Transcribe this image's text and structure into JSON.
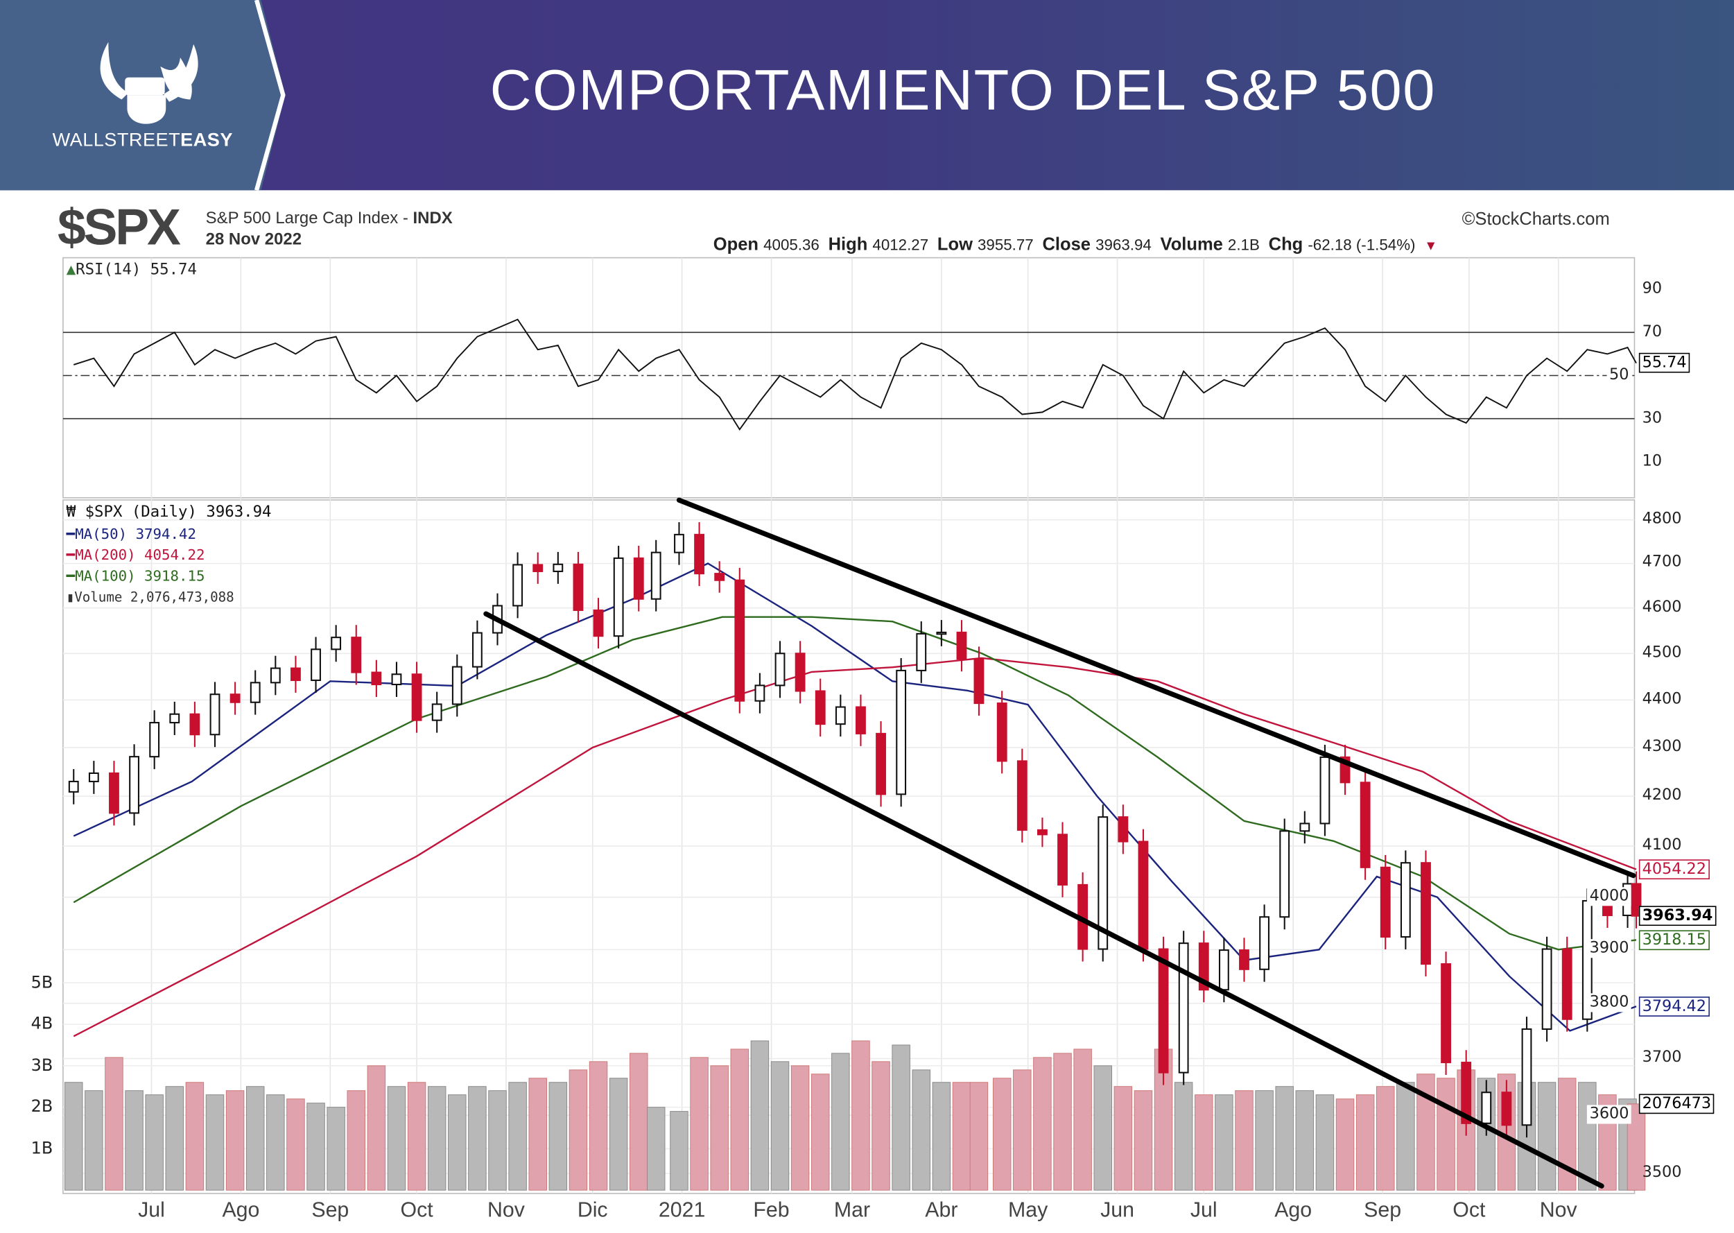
{
  "banner": {
    "title": "COMPORTAMIENTO DEL S&P 500",
    "logo_text_light": "WALLSTREET",
    "logo_text_bold": "EASY",
    "colors": {
      "logo_panel": "#46628a",
      "banner": "#41367f"
    }
  },
  "header": {
    "symbol": "$SPX",
    "description": "S&P 500 Large Cap Index - ",
    "exchange": "INDX",
    "date": "28 Nov 2022",
    "source": "©StockCharts.com",
    "quote": [
      {
        "label": "Open",
        "value": "4005.36"
      },
      {
        "label": "High",
        "value": "4012.27"
      },
      {
        "label": "Low",
        "value": "3955.77"
      },
      {
        "label": "Close",
        "value": "3963.94"
      },
      {
        "label": "Volume",
        "value": "2.1B"
      },
      {
        "label": "Chg",
        "value": "-62.18 (-1.54%)"
      }
    ],
    "change_direction": "down"
  },
  "legend": {
    "rsi": "RSI(14) 55.74",
    "price": "$SPX (Daily) 3963.94",
    "ma50": "MA(50) 3794.42",
    "ma200": "MA(200) 4054.22",
    "ma100": "MA(100) 3918.15",
    "volume": "Volume 2,076,473,088"
  },
  "right_labels": {
    "rsi": "55.74",
    "ma200": "4054.22",
    "close": "3963.94",
    "ma100": "3918.15",
    "ma50": "3794.42",
    "volume": "2076473"
  },
  "chart_data": {
    "type": "candlestick",
    "yscale": "log",
    "grid": true,
    "price_ticks": [
      "4800",
      "4700",
      "4600",
      "4500",
      "4400",
      "4300",
      "4200",
      "4100",
      "4000",
      "3900",
      "3800",
      "3700",
      "3600",
      "3500"
    ],
    "rsi_ticks": [
      "90",
      "70",
      "50",
      "30",
      "10"
    ],
    "volume_ticks": [
      "5B",
      "4B",
      "3B",
      "2B",
      "1B"
    ],
    "months": [
      {
        "label": "Jul",
        "date": "2021-07-01"
      },
      {
        "label": "Ago",
        "date": "2021-08-01"
      },
      {
        "label": "Sep",
        "date": "2021-09-01"
      },
      {
        "label": "Oct",
        "date": "2021-10-01"
      },
      {
        "label": "Nov",
        "date": "2021-11-01"
      },
      {
        "label": "Dic",
        "date": "2021-12-01"
      },
      {
        "label": "2021",
        "date": "2022-01-01"
      },
      {
        "label": "Feb",
        "date": "2022-02-01"
      },
      {
        "label": "Mar",
        "date": "2022-03-01"
      },
      {
        "label": "Abr",
        "date": "2022-04-01"
      },
      {
        "label": "May",
        "date": "2022-05-01"
      },
      {
        "label": "Jun",
        "date": "2022-06-01"
      },
      {
        "label": "Jul",
        "date": "2022-07-01"
      },
      {
        "label": "Ago",
        "date": "2022-08-01"
      },
      {
        "label": "Sep",
        "date": "2022-09-01"
      },
      {
        "label": "Oct",
        "date": "2022-10-01"
      },
      {
        "label": "Nov",
        "date": "2022-11-01"
      }
    ],
    "dates": [
      "2021-06-04",
      "2021-06-11",
      "2021-06-18",
      "2021-06-25",
      "2021-07-02",
      "2021-07-09",
      "2021-07-16",
      "2021-07-23",
      "2021-07-30",
      "2021-08-06",
      "2021-08-13",
      "2021-08-20",
      "2021-08-27",
      "2021-09-03",
      "2021-09-10",
      "2021-09-17",
      "2021-09-24",
      "2021-10-01",
      "2021-10-08",
      "2021-10-15",
      "2021-10-22",
      "2021-10-29",
      "2021-11-05",
      "2021-11-12",
      "2021-11-19",
      "2021-11-26",
      "2021-12-03",
      "2021-12-10",
      "2021-12-17",
      "2021-12-23",
      "2021-12-31",
      "2022-01-07",
      "2022-01-14",
      "2022-01-21",
      "2022-01-28",
      "2022-02-04",
      "2022-02-11",
      "2022-02-18",
      "2022-02-25",
      "2022-03-04",
      "2022-03-11",
      "2022-03-18",
      "2022-03-25",
      "2022-04-01",
      "2022-04-08",
      "2022-04-14",
      "2022-04-22",
      "2022-04-29",
      "2022-05-06",
      "2022-05-13",
      "2022-05-20",
      "2022-05-27",
      "2022-06-03",
      "2022-06-10",
      "2022-06-17",
      "2022-06-24",
      "2022-07-01",
      "2022-07-08",
      "2022-07-15",
      "2022-07-22",
      "2022-07-29",
      "2022-08-05",
      "2022-08-12",
      "2022-08-19",
      "2022-08-26",
      "2022-09-02",
      "2022-09-09",
      "2022-09-16",
      "2022-09-23",
      "2022-09-30",
      "2022-10-07",
      "2022-10-14",
      "2022-10-21",
      "2022-10-28",
      "2022-11-04",
      "2022-11-11",
      "2022-11-18",
      "2022-11-25",
      "2022-11-28"
    ],
    "close": [
      4230,
      4247,
      4166,
      4281,
      4352,
      4370,
      4327,
      4412,
      4395,
      4437,
      4468,
      4442,
      4509,
      4535,
      4459,
      4433,
      4455,
      4357,
      4391,
      4471,
      4545,
      4605,
      4697,
      4682,
      4698,
      4595,
      4538,
      4712,
      4620,
      4725,
      4766,
      4677,
      4662,
      4398,
      4431,
      4500,
      4419,
      4349,
      4385,
      4329,
      4204,
      4463,
      4543,
      4546,
      4488,
      4393,
      4272,
      4132,
      4123,
      4024,
      3901,
      4158,
      4109,
      3901,
      3675,
      3912,
      3825,
      3899,
      3863,
      3962,
      4130,
      4145,
      4280,
      4228,
      4058,
      3924,
      4067,
      3873,
      3693,
      3586,
      3640,
      3583,
      3753,
      3901,
      3771,
      3993,
      3965,
      4026,
      3964
    ],
    "volume_billions": [
      2.6,
      2.4,
      3.2,
      2.4,
      2.3,
      2.5,
      2.6,
      2.3,
      2.4,
      2.5,
      2.3,
      2.2,
      2.1,
      2.0,
      2.4,
      3.0,
      2.5,
      2.6,
      2.5,
      2.3,
      2.5,
      2.4,
      2.6,
      2.7,
      2.6,
      2.9,
      3.1,
      2.7,
      3.3,
      2.0,
      1.9,
      3.2,
      3.0,
      3.4,
      3.6,
      3.1,
      3.0,
      2.8,
      3.3,
      3.6,
      3.1,
      3.5,
      2.9,
      2.6,
      2.6,
      2.6,
      2.7,
      2.9,
      3.2,
      3.3,
      3.4,
      3.0,
      2.5,
      2.4,
      3.4,
      2.6,
      2.3,
      2.3,
      2.4,
      2.4,
      2.5,
      2.4,
      2.3,
      2.2,
      2.3,
      2.5,
      2.6,
      2.8,
      2.7,
      2.9,
      2.7,
      2.8,
      2.6,
      2.6,
      2.7,
      2.6,
      2.3,
      2.2,
      2.08
    ],
    "rsi": [
      55,
      58,
      45,
      60,
      65,
      70,
      55,
      62,
      58,
      62,
      65,
      60,
      66,
      68,
      48,
      42,
      50,
      38,
      45,
      58,
      68,
      72,
      76,
      62,
      64,
      45,
      48,
      62,
      52,
      58,
      62,
      48,
      40,
      25,
      38,
      50,
      45,
      40,
      48,
      40,
      35,
      58,
      65,
      62,
      55,
      45,
      40,
      32,
      33,
      38,
      35,
      55,
      50,
      36,
      30,
      52,
      42,
      48,
      45,
      55,
      65,
      68,
      72,
      62,
      45,
      38,
      50,
      40,
      32,
      28,
      40,
      35,
      50,
      58,
      52,
      62,
      60,
      63,
      55.74
    ],
    "rsi_levels": [
      70,
      50,
      30
    ],
    "series": [
      {
        "name": "MA(50)",
        "color": "#1a237e",
        "points": [
          [
            "2021-06-04",
            4120
          ],
          [
            "2021-07-15",
            4230
          ],
          [
            "2021-09-01",
            4440
          ],
          [
            "2021-10-15",
            4430
          ],
          [
            "2021-11-15",
            4540
          ],
          [
            "2021-12-15",
            4620
          ],
          [
            "2022-01-10",
            4700
          ],
          [
            "2022-02-15",
            4560
          ],
          [
            "2022-03-15",
            4440
          ],
          [
            "2022-04-10",
            4420
          ],
          [
            "2022-05-01",
            4390
          ],
          [
            "2022-05-25",
            4200
          ],
          [
            "2022-06-20",
            4030
          ],
          [
            "2022-07-15",
            3880
          ],
          [
            "2022-08-10",
            3900
          ],
          [
            "2022-08-30",
            4040
          ],
          [
            "2022-09-20",
            4000
          ],
          [
            "2022-10-15",
            3850
          ],
          [
            "2022-11-05",
            3750
          ],
          [
            "2022-11-28",
            3794.42
          ]
        ]
      },
      {
        "name": "MA(200)",
        "color": "#c0143c",
        "points": [
          [
            "2021-06-04",
            3740
          ],
          [
            "2021-08-01",
            3900
          ],
          [
            "2021-10-01",
            4080
          ],
          [
            "2021-12-01",
            4300
          ],
          [
            "2022-01-15",
            4400
          ],
          [
            "2022-02-15",
            4460
          ],
          [
            "2022-03-15",
            4470
          ],
          [
            "2022-04-15",
            4490
          ],
          [
            "2022-05-15",
            4470
          ],
          [
            "2022-06-15",
            4440
          ],
          [
            "2022-07-15",
            4370
          ],
          [
            "2022-08-15",
            4310
          ],
          [
            "2022-09-15",
            4250
          ],
          [
            "2022-10-15",
            4150
          ],
          [
            "2022-11-28",
            4054.22
          ]
        ]
      },
      {
        "name": "MA(100)",
        "color": "#2e6b1e",
        "points": [
          [
            "2021-06-04",
            3990
          ],
          [
            "2021-08-01",
            4180
          ],
          [
            "2021-10-01",
            4360
          ],
          [
            "2021-11-15",
            4450
          ],
          [
            "2021-12-15",
            4530
          ],
          [
            "2022-01-15",
            4580
          ],
          [
            "2022-02-15",
            4580
          ],
          [
            "2022-03-15",
            4570
          ],
          [
            "2022-04-15",
            4500
          ],
          [
            "2022-05-15",
            4410
          ],
          [
            "2022-06-15",
            4280
          ],
          [
            "2022-07-15",
            4150
          ],
          [
            "2022-08-15",
            4110
          ],
          [
            "2022-09-15",
            4040
          ],
          [
            "2022-10-15",
            3930
          ],
          [
            "2022-11-01",
            3900
          ],
          [
            "2022-11-28",
            3918.15
          ]
        ]
      }
    ],
    "trendlines": [
      {
        "from": [
          "2021-12-31",
          4846
        ],
        "to": [
          "2022-11-27",
          4042
        ]
      },
      {
        "from": [
          "2021-10-25",
          4587
        ],
        "to": [
          "2022-11-16",
          3479
        ]
      }
    ]
  }
}
